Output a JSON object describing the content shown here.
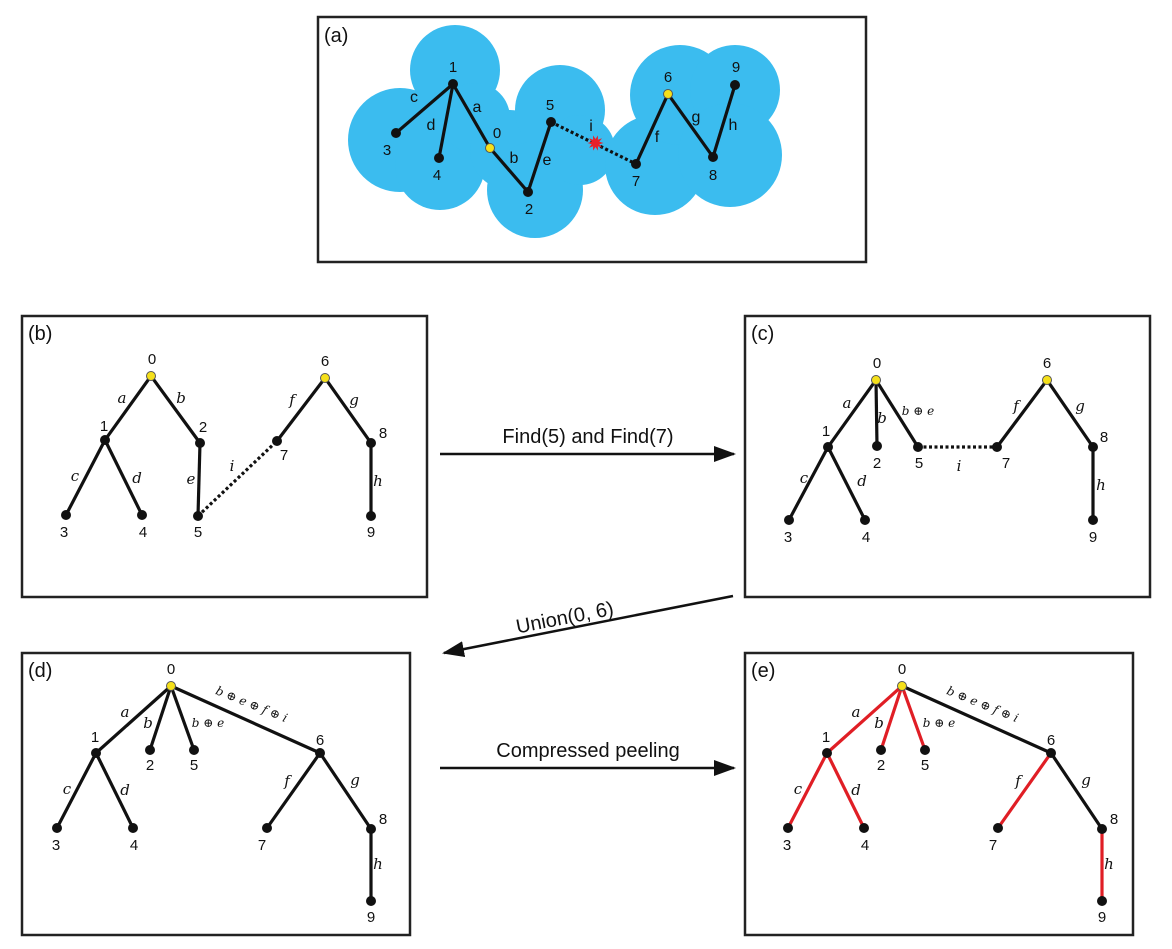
{
  "colors": {
    "region": "#3bbcef",
    "edge": "#111111",
    "peeled": "#e01e25",
    "root": "#f5e01a",
    "node": "#111111",
    "collision": "#e8202a"
  },
  "panels": [
    {
      "id": "a",
      "label": "(a)",
      "roots": [
        "0",
        "6"
      ],
      "nodes": [
        "0",
        "1",
        "2",
        "3",
        "4",
        "5",
        "6",
        "7",
        "8",
        "9"
      ],
      "edges": [
        {
          "from": "1",
          "to": "3",
          "label": "c"
        },
        {
          "from": "1",
          "to": "4",
          "label": "d"
        },
        {
          "from": "1",
          "to": "0",
          "label": "a"
        },
        {
          "from": "0",
          "to": "2",
          "label": "b"
        },
        {
          "from": "2",
          "to": "5",
          "label": "e"
        },
        {
          "from": "5",
          "to": "7",
          "label": "i",
          "style": "dotted",
          "marker": "collision-star"
        },
        {
          "from": "7",
          "to": "6",
          "label": "f"
        },
        {
          "from": "6",
          "to": "8",
          "label": "g"
        },
        {
          "from": "8",
          "to": "9",
          "label": "h"
        }
      ]
    },
    {
      "id": "b",
      "label": "(b)",
      "roots": [
        "0",
        "6"
      ],
      "nodes": [
        "0",
        "1",
        "2",
        "3",
        "4",
        "5",
        "6",
        "7",
        "8",
        "9"
      ],
      "edges": [
        {
          "from": "0",
          "to": "1",
          "label": "a"
        },
        {
          "from": "0",
          "to": "2",
          "label": "b"
        },
        {
          "from": "1",
          "to": "3",
          "label": "c"
        },
        {
          "from": "1",
          "to": "4",
          "label": "d"
        },
        {
          "from": "2",
          "to": "5",
          "label": "e"
        },
        {
          "from": "5",
          "to": "7",
          "label": "i",
          "style": "dotted"
        },
        {
          "from": "6",
          "to": "7",
          "label": "f"
        },
        {
          "from": "6",
          "to": "8",
          "label": "g"
        },
        {
          "from": "8",
          "to": "9",
          "label": "h"
        }
      ]
    },
    {
      "id": "c",
      "label": "(c)",
      "roots": [
        "0",
        "6"
      ],
      "nodes": [
        "0",
        "1",
        "2",
        "3",
        "4",
        "5",
        "6",
        "7",
        "8",
        "9"
      ],
      "edges": [
        {
          "from": "0",
          "to": "1",
          "label": "a"
        },
        {
          "from": "0",
          "to": "2",
          "label": "b"
        },
        {
          "from": "0",
          "to": "5",
          "label": "b ⊕ e"
        },
        {
          "from": "1",
          "to": "3",
          "label": "c"
        },
        {
          "from": "1",
          "to": "4",
          "label": "d"
        },
        {
          "from": "5",
          "to": "7",
          "label": "i",
          "style": "dotted"
        },
        {
          "from": "6",
          "to": "7",
          "label": "f"
        },
        {
          "from": "6",
          "to": "8",
          "label": "g"
        },
        {
          "from": "8",
          "to": "9",
          "label": "h"
        }
      ]
    },
    {
      "id": "d",
      "label": "(d)",
      "roots": [
        "0"
      ],
      "nodes": [
        "0",
        "1",
        "2",
        "3",
        "4",
        "5",
        "6",
        "7",
        "8",
        "9"
      ],
      "edges": [
        {
          "from": "0",
          "to": "1",
          "label": "a"
        },
        {
          "from": "0",
          "to": "2",
          "label": "b"
        },
        {
          "from": "0",
          "to": "5",
          "label": "b ⊕ e"
        },
        {
          "from": "0",
          "to": "6",
          "label": "b ⊕ e ⊕ f ⊕ i"
        },
        {
          "from": "1",
          "to": "3",
          "label": "c"
        },
        {
          "from": "1",
          "to": "4",
          "label": "d"
        },
        {
          "from": "6",
          "to": "7",
          "label": "f"
        },
        {
          "from": "6",
          "to": "8",
          "label": "g"
        },
        {
          "from": "8",
          "to": "9",
          "label": "h"
        }
      ]
    },
    {
      "id": "e",
      "label": "(e)",
      "roots": [
        "0"
      ],
      "nodes": [
        "0",
        "1",
        "2",
        "3",
        "4",
        "5",
        "6",
        "7",
        "8",
        "9"
      ],
      "edges": [
        {
          "from": "0",
          "to": "1",
          "label": "a",
          "peeled": true
        },
        {
          "from": "0",
          "to": "2",
          "label": "b",
          "peeled": true
        },
        {
          "from": "0",
          "to": "5",
          "label": "b ⊕ e",
          "peeled": true
        },
        {
          "from": "0",
          "to": "6",
          "label": "b ⊕ e ⊕ f ⊕ i"
        },
        {
          "from": "1",
          "to": "3",
          "label": "c",
          "peeled": true
        },
        {
          "from": "1",
          "to": "4",
          "label": "d",
          "peeled": true
        },
        {
          "from": "6",
          "to": "7",
          "label": "f",
          "peeled": true
        },
        {
          "from": "6",
          "to": "8",
          "label": "g"
        },
        {
          "from": "8",
          "to": "9",
          "label": "h",
          "peeled": true
        }
      ]
    }
  ],
  "arrows": [
    {
      "from": "b",
      "to": "c",
      "label": "Find(5) and Find(7)"
    },
    {
      "from": "c",
      "to": "d",
      "label": "Union(0, 6)"
    },
    {
      "from": "d",
      "to": "e",
      "label": "Compressed peeling"
    }
  ]
}
